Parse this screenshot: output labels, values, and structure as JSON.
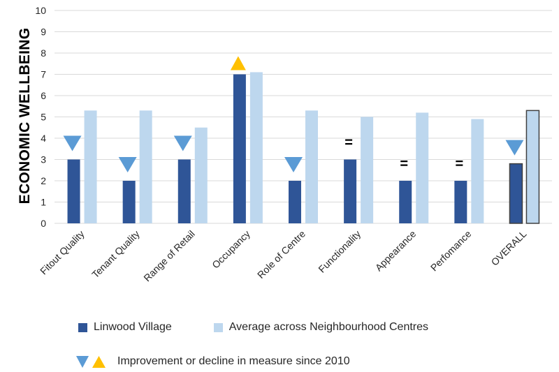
{
  "chart_data": {
    "type": "bar",
    "ylabel": "ECONOMIC WELLBEING",
    "ylim": [
      0,
      10
    ],
    "yticks": [
      "0",
      "1",
      "2",
      "3",
      "4",
      "5",
      "6",
      "7",
      "8",
      "9",
      "10"
    ],
    "grid": true,
    "categories": [
      "Fitout Quality",
      "Tenant Quality",
      "Range of Retail",
      "Occupancy",
      "Role of Centre",
      "Functionality",
      "Appearance",
      "Perfomance",
      "OVERALL"
    ],
    "series": [
      {
        "name": "Linwood Village",
        "color": "#2f5597",
        "values": [
          3,
          2,
          3,
          7,
          2,
          3,
          2,
          2,
          2.8
        ]
      },
      {
        "name": "Average across Neighbourhood Centres",
        "color": "#bdd7ee",
        "values": [
          5.3,
          5.3,
          4.5,
          7.1,
          5.3,
          5.0,
          5.2,
          4.9,
          5.3
        ]
      }
    ],
    "change_markers": [
      {
        "category": "Fitout Quality",
        "marker": "down-triangle"
      },
      {
        "category": "Tenant Quality",
        "marker": "down-triangle"
      },
      {
        "category": "Range of Retail",
        "marker": "down-triangle"
      },
      {
        "category": "Occupancy",
        "marker": "up-triangle"
      },
      {
        "category": "Role of Centre",
        "marker": "down-triangle"
      },
      {
        "category": "Functionality",
        "marker": "equal",
        "text": "="
      },
      {
        "category": "Appearance",
        "marker": "equal",
        "text": "="
      },
      {
        "category": "Perfomance",
        "marker": "equal",
        "text": "="
      },
      {
        "category": "OVERALL",
        "marker": "down-triangle"
      }
    ],
    "marker_colors": {
      "down": "#5b9bd5",
      "up": "#ffc000"
    }
  },
  "legend": {
    "series1": "Linwood Village",
    "series2": "Average across Neighbourhood Centres",
    "markers": "Improvement or decline in measure since 2010"
  }
}
